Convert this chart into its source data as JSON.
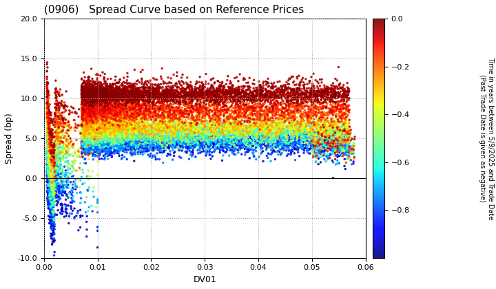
{
  "title": "(0906)   Spread Curve based on Reference Prices",
  "xlabel": "DV01",
  "ylabel": "Spread (bp)",
  "colorbar_label_line1": "Time in years between 5/9/2025 and Trade Date",
  "colorbar_label_line2": "(Past Trade Date is given as negative)",
  "xlim": [
    0.0,
    0.06
  ],
  "ylim": [
    -10.0,
    20.0
  ],
  "xticks": [
    0.0,
    0.01,
    0.02,
    0.03,
    0.04,
    0.05,
    0.06
  ],
  "yticks": [
    -10.0,
    -5.0,
    0.0,
    5.0,
    10.0,
    15.0,
    20.0
  ],
  "cmap": "jet",
  "vmin": -1.0,
  "vmax": 0.0,
  "colorbar_ticks": [
    0.0,
    -0.2,
    -0.4,
    -0.6,
    -0.8
  ],
  "point_size": 6,
  "alpha": 0.9,
  "background_color": "#ffffff",
  "grid_color": "#aaaaaa",
  "grid_linestyle": ":",
  "grid_linewidth": 0.8,
  "seed": 42
}
